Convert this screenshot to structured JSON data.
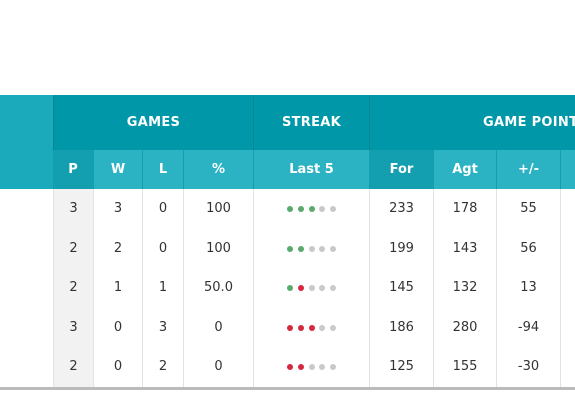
{
  "colors": {
    "header_dark": "#0098a8",
    "header_light": "#1aaabb",
    "win": "#5aaa6c",
    "loss": "#d6283d",
    "none": "#c9c9c9"
  },
  "groups": {
    "games": "GAMES",
    "streak": "STREAK",
    "game_points": "GAME POINTS"
  },
  "columns": {
    "p": "P",
    "w": "W",
    "l": "L",
    "pct": "%",
    "last5": "Last 5",
    "for": "For",
    "agt": "Agt",
    "diff": "+/-"
  },
  "rows": [
    {
      "p": "3",
      "w": "3",
      "l": "0",
      "pct": "100",
      "last5": [
        "W",
        "W",
        "W",
        "-",
        "-"
      ],
      "for": "233",
      "agt": "178",
      "diff": "55"
    },
    {
      "p": "2",
      "w": "2",
      "l": "0",
      "pct": "100",
      "last5": [
        "W",
        "W",
        "-",
        "-",
        "-"
      ],
      "for": "199",
      "agt": "143",
      "diff": "56"
    },
    {
      "p": "2",
      "w": "1",
      "l": "1",
      "pct": "50.0",
      "last5": [
        "W",
        "L",
        "-",
        "-",
        "-"
      ],
      "for": "145",
      "agt": "132",
      "diff": "13"
    },
    {
      "p": "3",
      "w": "0",
      "l": "3",
      "pct": "0",
      "last5": [
        "L",
        "L",
        "L",
        "-",
        "-"
      ],
      "for": "186",
      "agt": "280",
      "diff": "-94"
    },
    {
      "p": "2",
      "w": "0",
      "l": "2",
      "pct": "0",
      "last5": [
        "L",
        "L",
        "-",
        "-",
        "-"
      ],
      "for": "125",
      "agt": "155",
      "diff": "-30"
    }
  ]
}
